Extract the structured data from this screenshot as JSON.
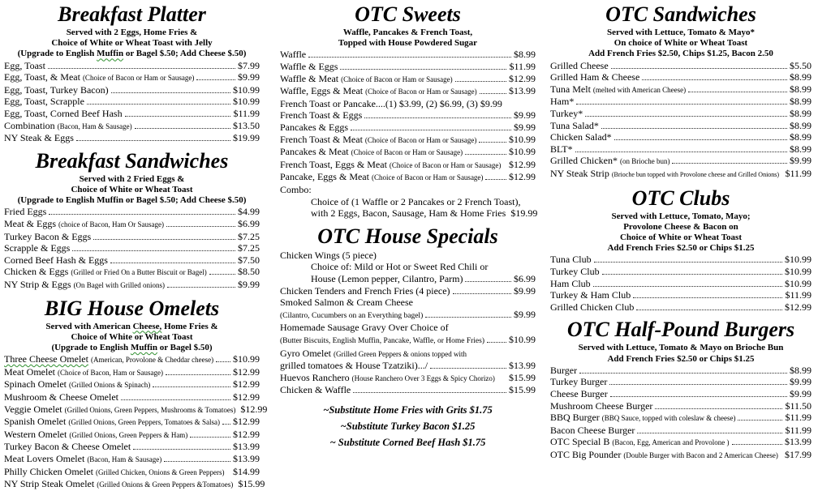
{
  "page": {
    "background": "#ffffff",
    "text_color": "#000000",
    "spellcheck_underline_color": "#2f8f2f"
  },
  "columns": [
    {
      "sections": [
        {
          "id": "breakfast-platter",
          "title": "Breakfast Platter",
          "subtitle_lines": [
            "Served with 2 Eggs, Home Fries &",
            "Choice of White or Wheat Toast with Jelly",
            [
              {
                "t": "(Upgrade to English "
              },
              {
                "t": "Muffin",
                "sq": true
              },
              {
                "t": " or Bagel $.50; Add Cheese $.50)"
              }
            ]
          ],
          "items": [
            {
              "name": "Egg, Toast",
              "price": "$7.99"
            },
            {
              "name": "Egg, Toast, & Meat",
              "note": "(Choice of Bacon or Ham or Sausage)",
              "price": "$9.99"
            },
            {
              "name": "Egg, Toast, Turkey Bacon)",
              "price": "$10.99"
            },
            {
              "name": "Egg, Toast, Scrapple",
              "price": "$10.99"
            },
            {
              "name": "Egg, Toast, Corned Beef Hash",
              "price": "$11.99"
            },
            {
              "name": "Combination",
              "note": "(Bacon, Ham & Sausage)",
              "price": "$13.50"
            },
            {
              "name": "NY Steak & Eggs",
              "price": "$19.99"
            }
          ]
        },
        {
          "id": "breakfast-sandwiches",
          "title": "Breakfast Sandwiches",
          "subtitle_lines": [
            "Served with 2 Fried Eggs &",
            "Choice of White or Wheat Toast",
            "(Upgrade to English Muffin or Bagel $.50; Add Cheese $.50)"
          ],
          "items": [
            {
              "name": "Fried Eggs",
              "price": "$4.99"
            },
            {
              "name": "Meat & Eggs",
              "note": "(choice of Bacon, Ham Or Sausage)",
              "price": "$6.99"
            },
            {
              "name": "Turkey Bacon & Eggs",
              "price": "$7.25"
            },
            {
              "name": "Scrapple & Eggs",
              "price": "$7.25"
            },
            {
              "name": "Corned Beef Hash & Eggs",
              "price": "$7.50"
            },
            {
              "name": "Chicken & Eggs",
              "note": "(Grilled or Fried On a Butter Biscuit or Bagel)",
              "price": "$8.50"
            },
            {
              "name": "NY Strip & Eggs",
              "note": "(On Bagel with Grilled onions)",
              "price": "$9.99"
            }
          ]
        },
        {
          "id": "big-house-omelets",
          "title": "BIG House Omelets",
          "subtitle_lines": [
            [
              {
                "t": "Served with American "
              },
              {
                "t": "Cheese,",
                "sq": true
              },
              {
                "t": " Home Fries &"
              }
            ],
            "Choice of White or Wheat Toast",
            [
              {
                "t": "(Upgrade to English "
              },
              {
                "t": "Muffin",
                "sq": true
              },
              {
                "t": " or Bagel $.50)"
              }
            ]
          ],
          "items": [
            {
              "name": "Three Cheese Omelet",
              "underline": true,
              "note": "(American, Provolone & Cheddar cheese)",
              "price": "$10.99"
            },
            {
              "name": "Meat Omelet",
              "note": "(Choice of Bacon, Ham or Sausage)",
              "price": "$12.99"
            },
            {
              "name": "Spinach Omelet",
              "note": "(Grilled Onions & Spinach)",
              "price": "$12.99"
            },
            {
              "name": "Mushroom & Cheese Omelet",
              "price": "$12.99"
            },
            {
              "name": "Veggie Omelet",
              "note": "(Grilled Onions, Green Peppers, Mushrooms & Tomatoes)",
              "price": "$12.99",
              "dots": false
            },
            {
              "name": "Spanish Omelet",
              "note": "(Grilled Onions, Green Peppers, Tomatoes & Salsa)",
              "price": "$12.99"
            },
            {
              "name": "Western Omelet",
              "note": "(Grilled Onions, Green Peppers & Ham)",
              "price": "$12.99"
            },
            {
              "name": "Turkey Bacon & Cheese Omelet",
              "price": "$13.99"
            },
            {
              "name": "Meat Lovers Omelet",
              "note": "(Bacon, Ham & Sausage)",
              "price": "$13.99"
            },
            {
              "name": "Philly Chicken Omelet",
              "note": "(Grilled Chicken, Onions & Green Peppers)",
              "price": "$14.99",
              "dots": false
            },
            {
              "name": "NY Strip Steak Omelet",
              "note": "(Grilled Onions & Green Peppers &Tomatoes)",
              "price": "$15.99",
              "dots": false
            }
          ]
        }
      ]
    },
    {
      "sections": [
        {
          "id": "otc-sweets",
          "title": "OTC Sweets",
          "subtitle_lines": [
            "Waffle, Pancakes & French Toast,",
            "Topped with House Powdered Sugar"
          ],
          "items": [
            {
              "name": "Waffle",
              "price": "$8.99"
            },
            {
              "name": "Waffle & Eggs",
              "price": "$11.99"
            },
            {
              "name": "Waffle & Meat",
              "note": "(Choice of Bacon or Ham or Sausage)",
              "price": "$12.99"
            },
            {
              "name": "Waffle, Eggs & Meat",
              "note": "(Choice of Bacon or Ham or Sausage)",
              "price": "$13.99"
            },
            {
              "name": "French Toast or Pancake....(1) $3.99, (2) $6.99, (3) $9.99"
            },
            {
              "name": "French Toast & Eggs",
              "price": "$9.99"
            },
            {
              "name": "Pancakes & Eggs",
              "price": "$9.99"
            },
            {
              "name": "French Toast & Meat",
              "note": "(Choice of Bacon or Ham or Sausage)",
              "price": "$10.99"
            },
            {
              "name": "Pancakes & Meat",
              "note": "(Choice of Bacon or Ham or Sausage)",
              "price": "$10.99"
            },
            {
              "name": "French Toast, Eggs & Meat",
              "note": "(Choice of Bacon or Ham or Sausage)",
              "price": "$12.99",
              "dots": false
            },
            {
              "name": "Pancake, Eggs & Meat",
              "note": "(Choice of Bacon or Ham or Sausage)",
              "price": "$12.99"
            },
            {
              "name": "Combo:",
              "lines": [
                {
                  "text": "Choice of (1 Waffle or 2 Pancakes or 2 French Toast),",
                  "indent": true
                },
                {
                  "text": "with 2 Eggs, Bacon, Sausage, Ham & Home Fries",
                  "indent": true,
                  "price": "$19.99"
                }
              ]
            }
          ]
        },
        {
          "id": "otc-house-specials",
          "title": "OTC House Specials",
          "items": [
            {
              "name": "Chicken Wings (5 piece)",
              "lines": [
                {
                  "text": "Choice of: Mild or Hot or Sweet Red Chili or",
                  "indent": true
                },
                {
                  "text": "House (Lemon pepper, Cilantro, Parm)",
                  "indent": true,
                  "price": "$6.99"
                }
              ]
            },
            {
              "name": "Chicken Tenders and French Fries (4 piece)",
              "price": "$9.99"
            },
            {
              "name": "Smoked Salmon & Cream Cheese",
              "lines": [
                {
                  "text": "(Cilantro, Cucumbers on an Everything bagel)",
                  "small": true,
                  "price": "$9.99"
                }
              ]
            },
            {
              "name": "Homemade Sausage Gravy Over Choice of",
              "lines": [
                {
                  "text": "(Butter Biscuits, English Muffin, Pancake, Waffle, or Home Fries)",
                  "small": true,
                  "price": "$10.99"
                }
              ]
            },
            {
              "name": "Gyro Omelet",
              "note": "(Grilled Green Peppers & onions topped with",
              "lines": [
                {
                  "text": "grilled tomatoes & House Tzatziki).../",
                  "price": "$13.99"
                }
              ]
            },
            {
              "name": "Huevos Ranchero",
              "note": "(House Ranchero Over 3 Eggs & Spicy Chorizo)",
              "price": "$15.99",
              "dots": false
            },
            {
              "name": "Chicken & Waffle",
              "price": "$15.99"
            }
          ]
        },
        {
          "id": "substitutions",
          "cls": "subs-block",
          "footer_lines": [
            "~Substitute Home Fries with Grits $1.75",
            "~Substitute Turkey Bacon $1.25",
            "~ Substitute Corned Beef Hash $1.75"
          ]
        }
      ]
    },
    {
      "sections": [
        {
          "id": "otc-sandwiches",
          "title": "OTC Sandwiches",
          "subtitle_lines": [
            "Served with Lettuce, Tomato & Mayo*",
            "On choice of White or Wheat Toast",
            "Add French Fries  $2.50, Chips $1.25, Bacon 2.50"
          ],
          "items": [
            {
              "name": "Grilled Cheese",
              "price": "$5.50"
            },
            {
              "name": "Grilled Ham & Cheese",
              "price": "$8.99"
            },
            {
              "name": "Tuna Melt",
              "note": "(melted with American Cheese)",
              "price": "$8.99"
            },
            {
              "name": "Ham*",
              "price": "$8.99"
            },
            {
              "name": "Turkey*",
              "price": "$8.99"
            },
            {
              "name": "Tuna Salad*",
              "price": "$8.99"
            },
            {
              "name": "Chicken Salad*",
              "price": "$8.99"
            },
            {
              "name": "BLT*",
              "price": "$8.99"
            },
            {
              "name": "Grilled Chicken*",
              "note": "(on Brioche bun)",
              "price": "$9.99"
            },
            {
              "name": "NY Steak Strip",
              "note": "(Brioche bun topped with Provolone cheese and Grilled Onions)",
              "note_small": true,
              "price": "$11.99",
              "dots": false
            }
          ]
        },
        {
          "id": "otc-clubs",
          "title": "OTC Clubs",
          "subtitle_lines": [
            "Served with Lettuce, Tomato, Mayo;",
            "Provolone Cheese & Bacon on",
            "Choice of White or Wheat Toast",
            "Add French Fries  $2.50 or Chips $1.25"
          ],
          "items": [
            {
              "name": "Tuna Club",
              "price": "$10.99"
            },
            {
              "name": "Turkey Club",
              "price": "$10.99"
            },
            {
              "name": "Ham Club",
              "price": "$10.99"
            },
            {
              "name": "Turkey & Ham Club",
              "price": "$11.99"
            },
            {
              "name": "Grilled Chicken Club",
              "price": "$12.99"
            }
          ]
        },
        {
          "id": "otc-half-pound-burgers",
          "title": "OTC Half-Pound Burgers",
          "subtitle_lines": [
            "Served with Lettuce, Tomato & Mayo on Brioche Bun",
            "Add French Fries  $2.50 or Chips $1.25"
          ],
          "items": [
            {
              "name": "Burger",
              "price": "$8.99"
            },
            {
              "name": "Turkey Burger",
              "price": "$9.99"
            },
            {
              "name": "Cheese Burger",
              "price": "$9.99"
            },
            {
              "name": "Mushroom Cheese Burger",
              "price": "$11.50"
            },
            {
              "name": "BBQ Burger",
              "note": "(BBQ Sauce, topped with coleslaw & cheese)",
              "price": "$11.99"
            },
            {
              "name": "Bacon Cheese Burger",
              "price": "$11.99"
            },
            {
              "name": "OTC Special B",
              "note": "(Bacon, Egg, American and Provolone )",
              "price": "$13.99"
            },
            {
              "name": "OTC Big Pounder",
              "note": "(Double Burger with Bacon and 2 American Cheese)",
              "price": "$17.99",
              "dots": false
            }
          ]
        }
      ]
    }
  ]
}
